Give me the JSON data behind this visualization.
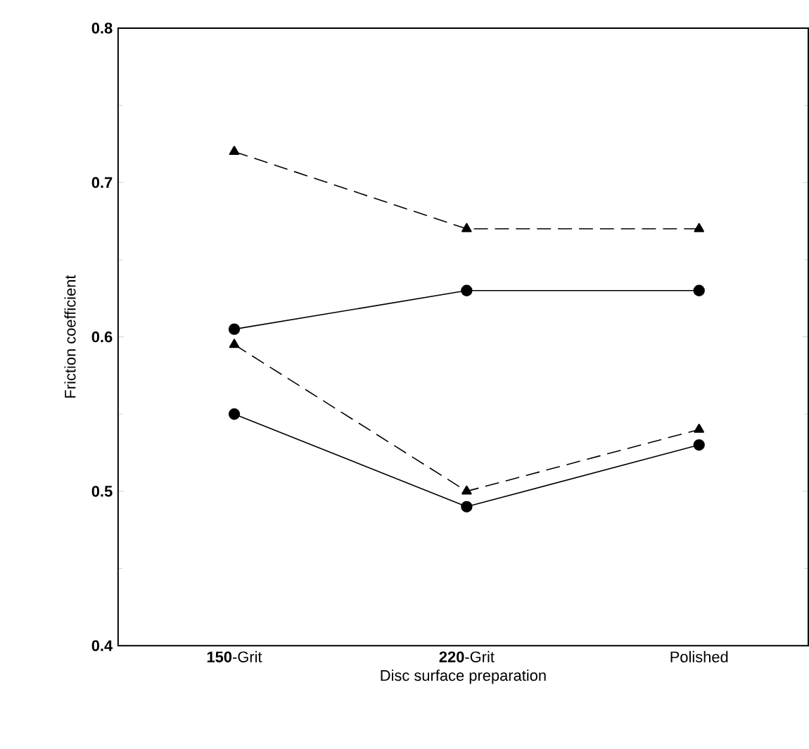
{
  "chart_data": {
    "type": "line",
    "xlabel": "Disc surface preparation",
    "ylabel": "Friction coefficient",
    "categories": [
      "**150**-Grit",
      "**220**-Grit",
      "Polished"
    ],
    "ylim": [
      0.4,
      0.8
    ],
    "yticks": [
      0.4,
      0.5,
      0.6,
      0.7,
      0.8
    ],
    "series": [
      {
        "color": "#000000",
        "marker": "triangle",
        "line_style": "dashed",
        "values": [
          0.72,
          0.67,
          0.67
        ]
      },
      {
        "color": "#000000",
        "marker": "circle",
        "line_style": "solid",
        "values": [
          0.605,
          0.63,
          0.63
        ]
      },
      {
        "color": "#000000",
        "marker": "triangle",
        "line_style": "dashed",
        "values": [
          0.595,
          0.5,
          0.54
        ]
      },
      {
        "color": "#000000",
        "marker": "circle",
        "line_style": "solid",
        "values": [
          0.55,
          0.49,
          0.53
        ]
      }
    ]
  }
}
